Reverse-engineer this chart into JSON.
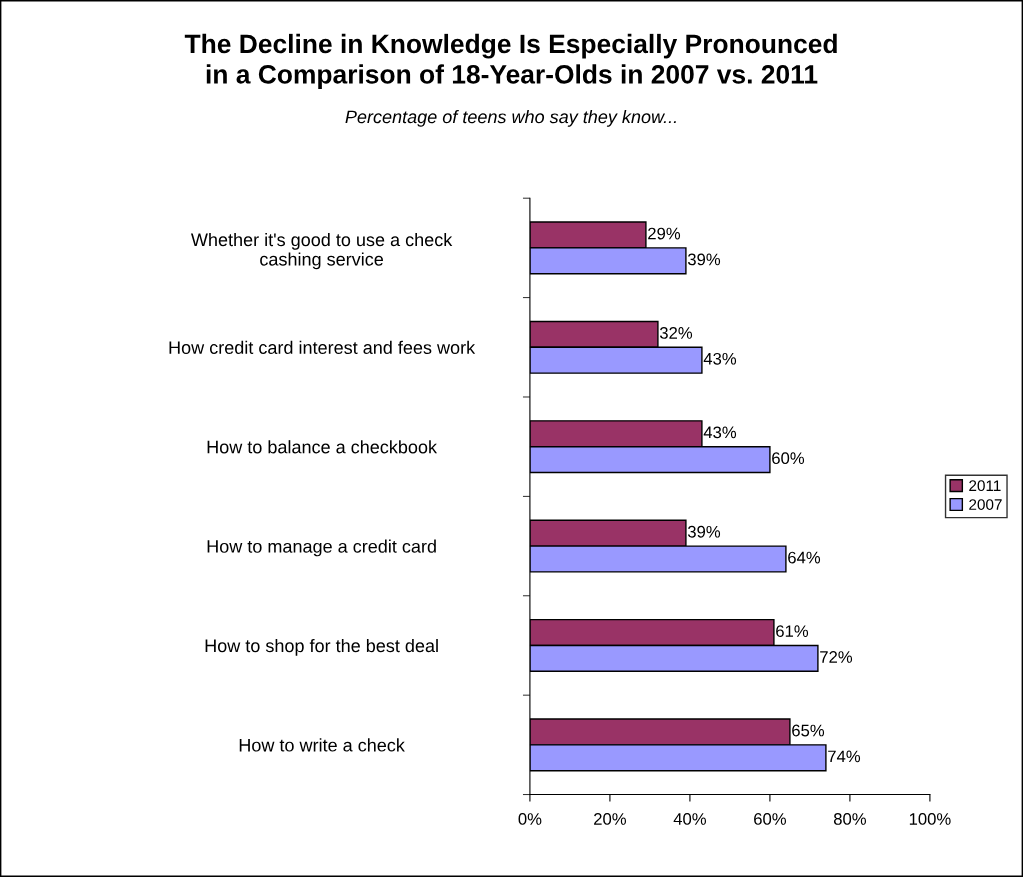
{
  "chart_data": {
    "type": "bar",
    "orientation": "horizontal",
    "title": "The Decline in Knowledge Is Especially Pronounced\nin a Comparison of 18-Year-Olds in 2007 vs. 2011",
    "subtitle": "Percentage of teens who say they know...",
    "categories": [
      "Whether it's good to use a check\ncashing service",
      "How credit card interest and fees work",
      "How to balance a checkbook",
      "How to manage a credit card",
      "How to shop for the best deal",
      "How to write a check"
    ],
    "series": [
      {
        "name": "2011",
        "color": "#993366",
        "values": [
          29,
          32,
          43,
          39,
          61,
          65
        ],
        "value_labels": [
          "29%",
          "32%",
          "43%",
          "39%",
          "61%",
          "65%"
        ]
      },
      {
        "name": "2007",
        "color": "#9999ff",
        "values": [
          39,
          43,
          60,
          64,
          72,
          74
        ],
        "value_labels": [
          "39%",
          "43%",
          "60%",
          "64%",
          "72%",
          "74%"
        ]
      }
    ],
    "xlim": [
      0,
      100
    ],
    "xticks": [
      {
        "value": 0,
        "label": "0%"
      },
      {
        "value": 20,
        "label": "20%"
      },
      {
        "value": 40,
        "label": "40%"
      },
      {
        "value": 60,
        "label": "60%"
      },
      {
        "value": 80,
        "label": "80%"
      },
      {
        "value": 100,
        "label": "100%"
      }
    ],
    "grid": false,
    "legend": "right"
  }
}
